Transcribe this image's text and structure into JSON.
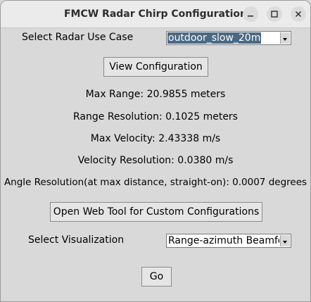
{
  "window": {
    "title": "FMCW Radar Chirp Configuration"
  },
  "use_case": {
    "label": "Select Radar Use Case",
    "selected": "outdoor_slow_20m"
  },
  "view_button_label": "View Configuration",
  "results": {
    "max_range": "Max Range: 20.9855 meters",
    "range_resolution": "Range Resolution: 0.1025 meters",
    "max_velocity": "Max Velocity:  2.43338 m/s",
    "velocity_resolution": "Velocity Resolution:  0.0380 m/s",
    "angle_resolution": "Angle Resolution(at max distance, straight-on):  0.0007 degrees"
  },
  "web_tool_button_label": "Open Web Tool for Custom Configurations",
  "visualization": {
    "label": "Select Visualization",
    "selected": "Range-azimuth Beamfor"
  },
  "go_button_label": "Go",
  "icons": {
    "minimize": "minimize-icon",
    "maximize": "maximize-icon",
    "close": "close-icon",
    "dropdown": "chevron-down-icon"
  }
}
